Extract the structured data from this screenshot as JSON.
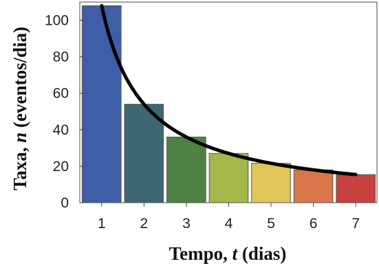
{
  "chart_data": {
    "type": "bar",
    "categories": [
      "1",
      "2",
      "3",
      "4",
      "5",
      "6",
      "7"
    ],
    "values": [
      108,
      54,
      36,
      27,
      21.6,
      18,
      15.4
    ],
    "colors": [
      "#3f5ea8",
      "#3d6775",
      "#4e8245",
      "#a4b84b",
      "#e1c558",
      "#d9774a",
      "#c8413f"
    ],
    "curve": {
      "type": "line",
      "formula": "n = 108 / t",
      "x_range": [
        1,
        7
      ],
      "color": "#000000"
    },
    "xlim": [
      0.5,
      7.5
    ],
    "ylim": [
      0,
      110
    ],
    "yticks": [
      0,
      20,
      40,
      60,
      80,
      100
    ],
    "xlabel": {
      "prefix": "Tempo, ",
      "var": "t",
      "suffix": " (dias)"
    },
    "ylabel": {
      "prefix": "Taxa, ",
      "var": "n",
      "suffix": " (eventos/dia)"
    },
    "grid": false,
    "legend": "none"
  }
}
